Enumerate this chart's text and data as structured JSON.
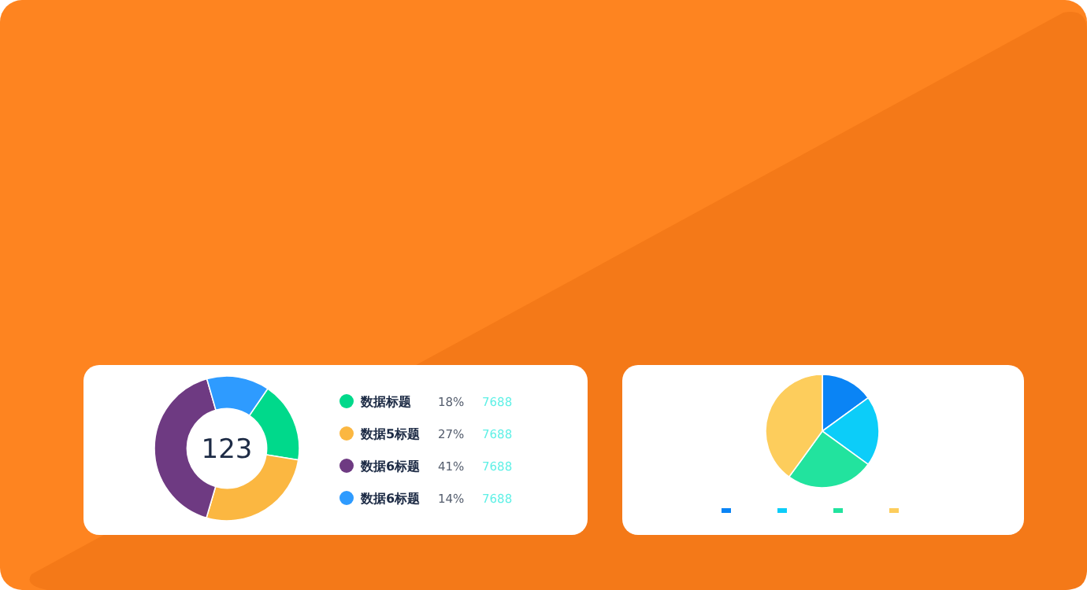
{
  "chart_data": [
    {
      "type": "donut",
      "categories": [
        "数据标题",
        "数据5标题",
        "数据6标题",
        "数据6标题"
      ],
      "values": [
        18,
        27,
        41,
        14
      ],
      "value_labels": [
        "18%",
        "27%",
        "41%",
        "14%"
      ],
      "colors": [
        "#00d98b",
        "#fbb741",
        "#6e3a82",
        "#2e9bff"
      ],
      "legend": "right",
      "annotations": [
        "123",
        "7688",
        "7688",
        "7688",
        "7688"
      ]
    },
    {
      "type": "pie",
      "categories": [
        null,
        null,
        null,
        null
      ],
      "values": [
        15,
        20,
        25,
        40
      ],
      "colors": [
        "#0a84f5",
        "#0ccdf9",
        "#22e39e",
        "#fdcd5c"
      ]
    }
  ]
}
